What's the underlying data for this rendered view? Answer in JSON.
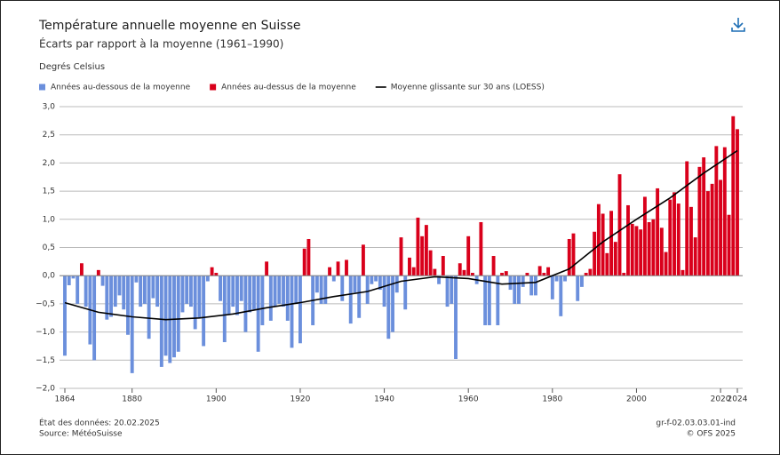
{
  "chart_data": {
    "type": "bar",
    "title": "Température annuelle moyenne en Suisse",
    "subtitle": "Écarts par rapport à la moyenne (1961–1990)",
    "y_label": "Degrés Celsius",
    "series": [
      {
        "name": "Années au-dessous de la moyenne",
        "color": "#6b8fdc"
      },
      {
        "name": "Années au-dessus de la moyenne",
        "color": "#d9001b"
      }
    ],
    "trend": {
      "name": "Moyenne glissante sur 30 ans (LOESS)",
      "color": "#000000",
      "x": [
        1864,
        1872,
        1880,
        1888,
        1896,
        1904,
        1912,
        1920,
        1928,
        1936,
        1944,
        1952,
        1960,
        1968,
        1976,
        1984,
        1992,
        2000,
        2008,
        2016,
        2024
      ],
      "values": [
        -0.48,
        -0.65,
        -0.73,
        -0.78,
        -0.75,
        -0.68,
        -0.57,
        -0.48,
        -0.37,
        -0.28,
        -0.1,
        -0.02,
        -0.05,
        -0.15,
        -0.12,
        0.12,
        0.6,
        1.0,
        1.38,
        1.82,
        2.22
      ]
    },
    "x": [
      1864,
      1865,
      1866,
      1867,
      1868,
      1869,
      1870,
      1871,
      1872,
      1873,
      1874,
      1875,
      1876,
      1877,
      1878,
      1879,
      1880,
      1881,
      1882,
      1883,
      1884,
      1885,
      1886,
      1887,
      1888,
      1889,
      1890,
      1891,
      1892,
      1893,
      1894,
      1895,
      1896,
      1897,
      1898,
      1899,
      1900,
      1901,
      1902,
      1903,
      1904,
      1905,
      1906,
      1907,
      1908,
      1909,
      1910,
      1911,
      1912,
      1913,
      1914,
      1915,
      1916,
      1917,
      1918,
      1919,
      1920,
      1921,
      1922,
      1923,
      1924,
      1925,
      1926,
      1927,
      1928,
      1929,
      1930,
      1931,
      1932,
      1933,
      1934,
      1935,
      1936,
      1937,
      1938,
      1939,
      1940,
      1941,
      1942,
      1943,
      1944,
      1945,
      1946,
      1947,
      1948,
      1949,
      1950,
      1951,
      1952,
      1953,
      1954,
      1955,
      1956,
      1957,
      1958,
      1959,
      1960,
      1961,
      1962,
      1963,
      1964,
      1965,
      1966,
      1967,
      1968,
      1969,
      1970,
      1971,
      1972,
      1973,
      1974,
      1975,
      1976,
      1977,
      1978,
      1979,
      1980,
      1981,
      1982,
      1983,
      1984,
      1985,
      1986,
      1987,
      1988,
      1989,
      1990,
      1991,
      1992,
      1993,
      1994,
      1995,
      1996,
      1997,
      1998,
      1999,
      2000,
      2001,
      2002,
      2003,
      2004,
      2005,
      2006,
      2007,
      2008,
      2009,
      2010,
      2011,
      2012,
      2013,
      2014,
      2015,
      2016,
      2017,
      2018,
      2019,
      2020,
      2021,
      2022,
      2023,
      2024
    ],
    "values": [
      -1.42,
      -0.17,
      -0.05,
      -0.5,
      0.22,
      -0.55,
      -1.22,
      -1.5,
      0.1,
      -0.18,
      -0.78,
      -0.73,
      -0.55,
      -0.35,
      -0.6,
      -1.05,
      -1.73,
      -0.12,
      -0.55,
      -0.5,
      -1.12,
      -0.4,
      -0.55,
      -1.62,
      -1.42,
      -1.55,
      -1.45,
      -1.35,
      -0.65,
      -0.5,
      -0.55,
      -0.95,
      -0.75,
      -1.25,
      -0.1,
      0.15,
      0.05,
      -0.45,
      -1.18,
      -0.7,
      -0.55,
      -0.7,
      -0.45,
      -1.0,
      -0.65,
      -0.6,
      -1.35,
      -0.88,
      0.25,
      -0.8,
      -0.55,
      -0.5,
      -0.55,
      -0.8,
      -1.28,
      -0.5,
      -1.2,
      0.48,
      0.65,
      -0.88,
      -0.3,
      -0.5,
      -0.5,
      0.15,
      -0.1,
      0.25,
      -0.45,
      0.28,
      -0.85,
      -0.3,
      -0.75,
      0.55,
      -0.5,
      -0.15,
      -0.1,
      -0.25,
      -0.55,
      -1.12,
      -1.0,
      -0.3,
      0.68,
      -0.6,
      0.32,
      0.15,
      1.03,
      0.7,
      0.9,
      0.45,
      0.12,
      -0.15,
      0.35,
      -0.55,
      -0.5,
      -1.48,
      0.22,
      0.1,
      0.7,
      0.05,
      -0.15,
      0.95,
      -0.88,
      -0.88,
      0.35,
      -0.88,
      0.05,
      0.08,
      -0.25,
      -0.5,
      -0.5,
      -0.2,
      0.05,
      -0.35,
      -0.35,
      0.17,
      0.05,
      0.15,
      -0.42,
      -0.1,
      -0.72,
      -0.1,
      0.65,
      0.75,
      -0.45,
      -0.2,
      0.05,
      0.12,
      0.78,
      1.27,
      1.1,
      0.4,
      1.15,
      0.6,
      1.8,
      0.05,
      1.25,
      0.92,
      0.88,
      0.82,
      1.4,
      0.95,
      1.0,
      1.55,
      0.85,
      0.42,
      1.35,
      1.48,
      1.28,
      0.1,
      2.03,
      1.22,
      0.68,
      1.93,
      2.1,
      1.5,
      1.63,
      2.3,
      1.7,
      2.28,
      1.08,
      2.83,
      2.6
    ],
    "xlim": [
      1864,
      2024
    ],
    "xticks": [
      1864,
      1880,
      1900,
      1920,
      1940,
      1960,
      1980,
      2000,
      2020,
      2024
    ],
    "ylim": [
      -2,
      3
    ],
    "yticks": [
      {
        "value": -2,
        "label": "−2,0"
      },
      {
        "value": -1.5,
        "label": "−1,5"
      },
      {
        "value": -1,
        "label": "−1,0"
      },
      {
        "value": -0.5,
        "label": "−0,5"
      },
      {
        "value": 0,
        "label": "0,0"
      },
      {
        "value": 0.5,
        "label": "0,5"
      },
      {
        "value": 1,
        "label": "1,0"
      },
      {
        "value": 1.5,
        "label": "1,5"
      },
      {
        "value": 2,
        "label": "2,0"
      },
      {
        "value": 2.5,
        "label": "2,5"
      },
      {
        "value": 3,
        "label": "3,0"
      }
    ],
    "grid": true,
    "footer_left": [
      "État des données: 20.02.2025",
      "Source: MétéoSuisse"
    ],
    "footer_right": [
      "gr-f-02.03.03.01-ind",
      "© OFS 2025"
    ]
  }
}
